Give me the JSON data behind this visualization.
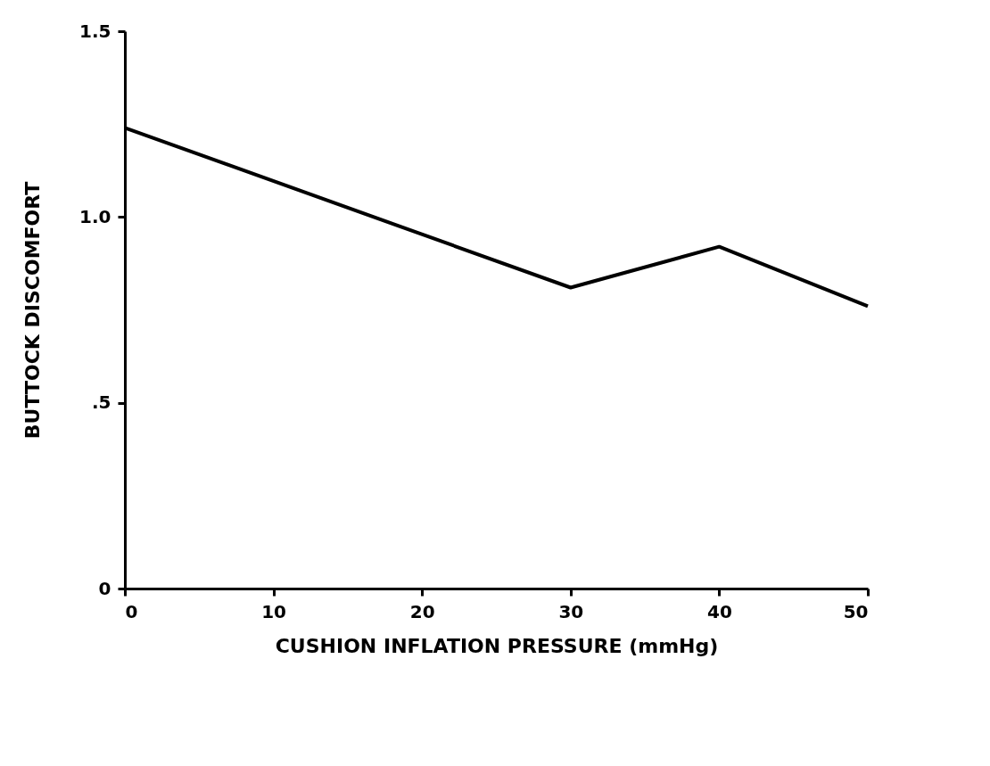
{
  "chart_data": {
    "type": "line",
    "xlabel": "CUSHION INFLATION PRESSURE (mmHg)",
    "ylabel": "BUTTOCK DISCOMFORT",
    "x": [
      0,
      30,
      40,
      50
    ],
    "series": [
      {
        "color": "#000000",
        "values": [
          1.24,
          0.81,
          0.92,
          0.76
        ]
      }
    ],
    "xlim": [
      0,
      50
    ],
    "xticks": [
      0,
      10,
      20,
      30,
      40,
      50
    ],
    "ylim": [
      0,
      1.5
    ],
    "yticks": [
      0,
      {
        "value": 0.5,
        "label": ".5"
      },
      {
        "value": 1,
        "label": "1.0"
      },
      1.5
    ],
    "grid": false,
    "marker": "none",
    "line_style": "solid"
  }
}
